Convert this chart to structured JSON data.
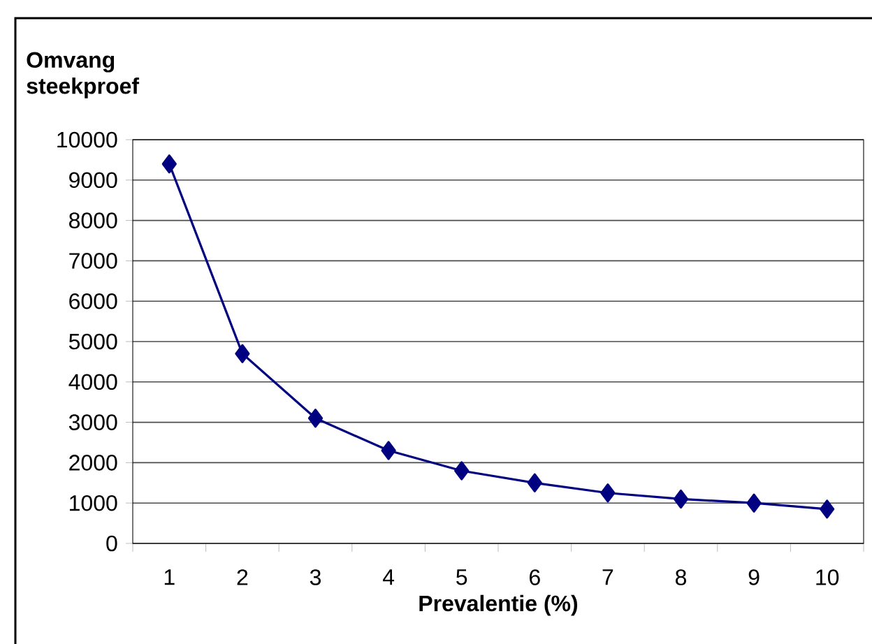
{
  "chart_data": {
    "type": "line",
    "xlabel": "Prevalentie (%)",
    "ylabel": "Omvang steekproef",
    "categories": [
      "1",
      "2",
      "3",
      "4",
      "5",
      "6",
      "7",
      "8",
      "9",
      "10"
    ],
    "series": [
      {
        "color": "#000080",
        "values": [
          9400,
          4700,
          3100,
          2300,
          1800,
          1500,
          1250,
          1100,
          1000,
          850
        ]
      }
    ],
    "ylim": [
      0,
      10000
    ],
    "yticks": [
      0,
      1000,
      2000,
      3000,
      4000,
      5000,
      6000,
      7000,
      8000,
      9000,
      10000
    ],
    "grid": "y",
    "marker": "diamond",
    "line_style": "solid"
  }
}
